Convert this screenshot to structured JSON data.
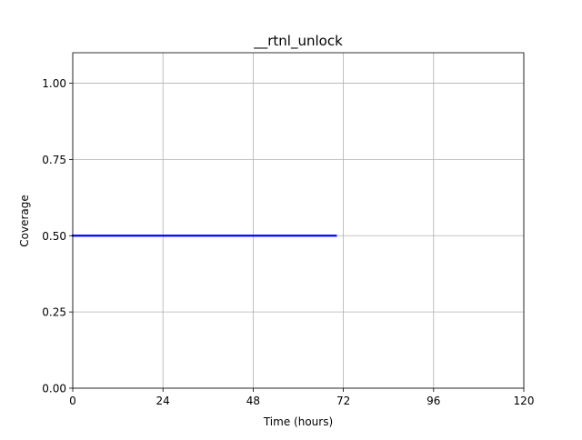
{
  "chart_data": {
    "type": "line",
    "title": "__rtnl_unlock",
    "xlabel": "Time (hours)",
    "ylabel": "Coverage",
    "xlim": [
      0,
      120
    ],
    "ylim": [
      0,
      1.1
    ],
    "xticks": [
      0,
      24,
      48,
      72,
      96,
      120
    ],
    "xtick_labels": [
      "0",
      "24",
      "48",
      "72",
      "96",
      "120"
    ],
    "yticks": [
      0.0,
      0.25,
      0.5,
      0.75,
      1.0
    ],
    "ytick_labels": [
      "0.00",
      "0.25",
      "0.50",
      "0.75",
      "1.00"
    ],
    "grid": true,
    "legend": null,
    "series": [
      {
        "color": "#0000ff",
        "x": [
          0,
          70
        ],
        "y": [
          0.5,
          0.5
        ]
      }
    ]
  }
}
